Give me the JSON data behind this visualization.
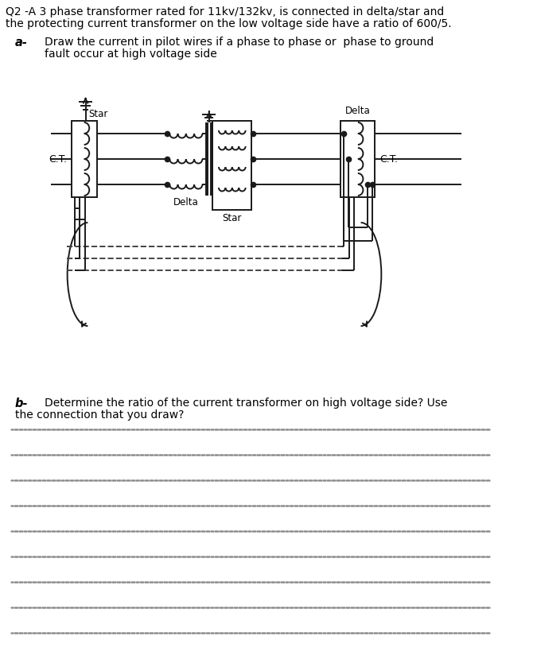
{
  "title_line1": "Q2 -A 3 phase transformer rated for 11kv/132kv, is connected in delta/star and",
  "title_line2": "the protecting current transformer on the low voltage side have a ratio of 600/5.",
  "part_a_label": "a-",
  "part_a_text1": "Draw the current in pilot wires if a phase to phase or  phase to ground",
  "part_a_text2": "fault occur at high voltage side",
  "part_b_label": "b-",
  "part_b_text": "Determine the ratio of the current transformer on high voltage side? Use",
  "part_b_text2": "the connection that you draw?",
  "bg_color": "#ffffff",
  "line_color": "#1a1a1a",
  "num_dotted_lines": 9,
  "label_star_left": "Star",
  "label_delta_mid": "Delta",
  "label_star_mid": "Star",
  "label_delta_right": "Delta",
  "label_ct_left": "C.T.",
  "label_ct_right": "C.T."
}
